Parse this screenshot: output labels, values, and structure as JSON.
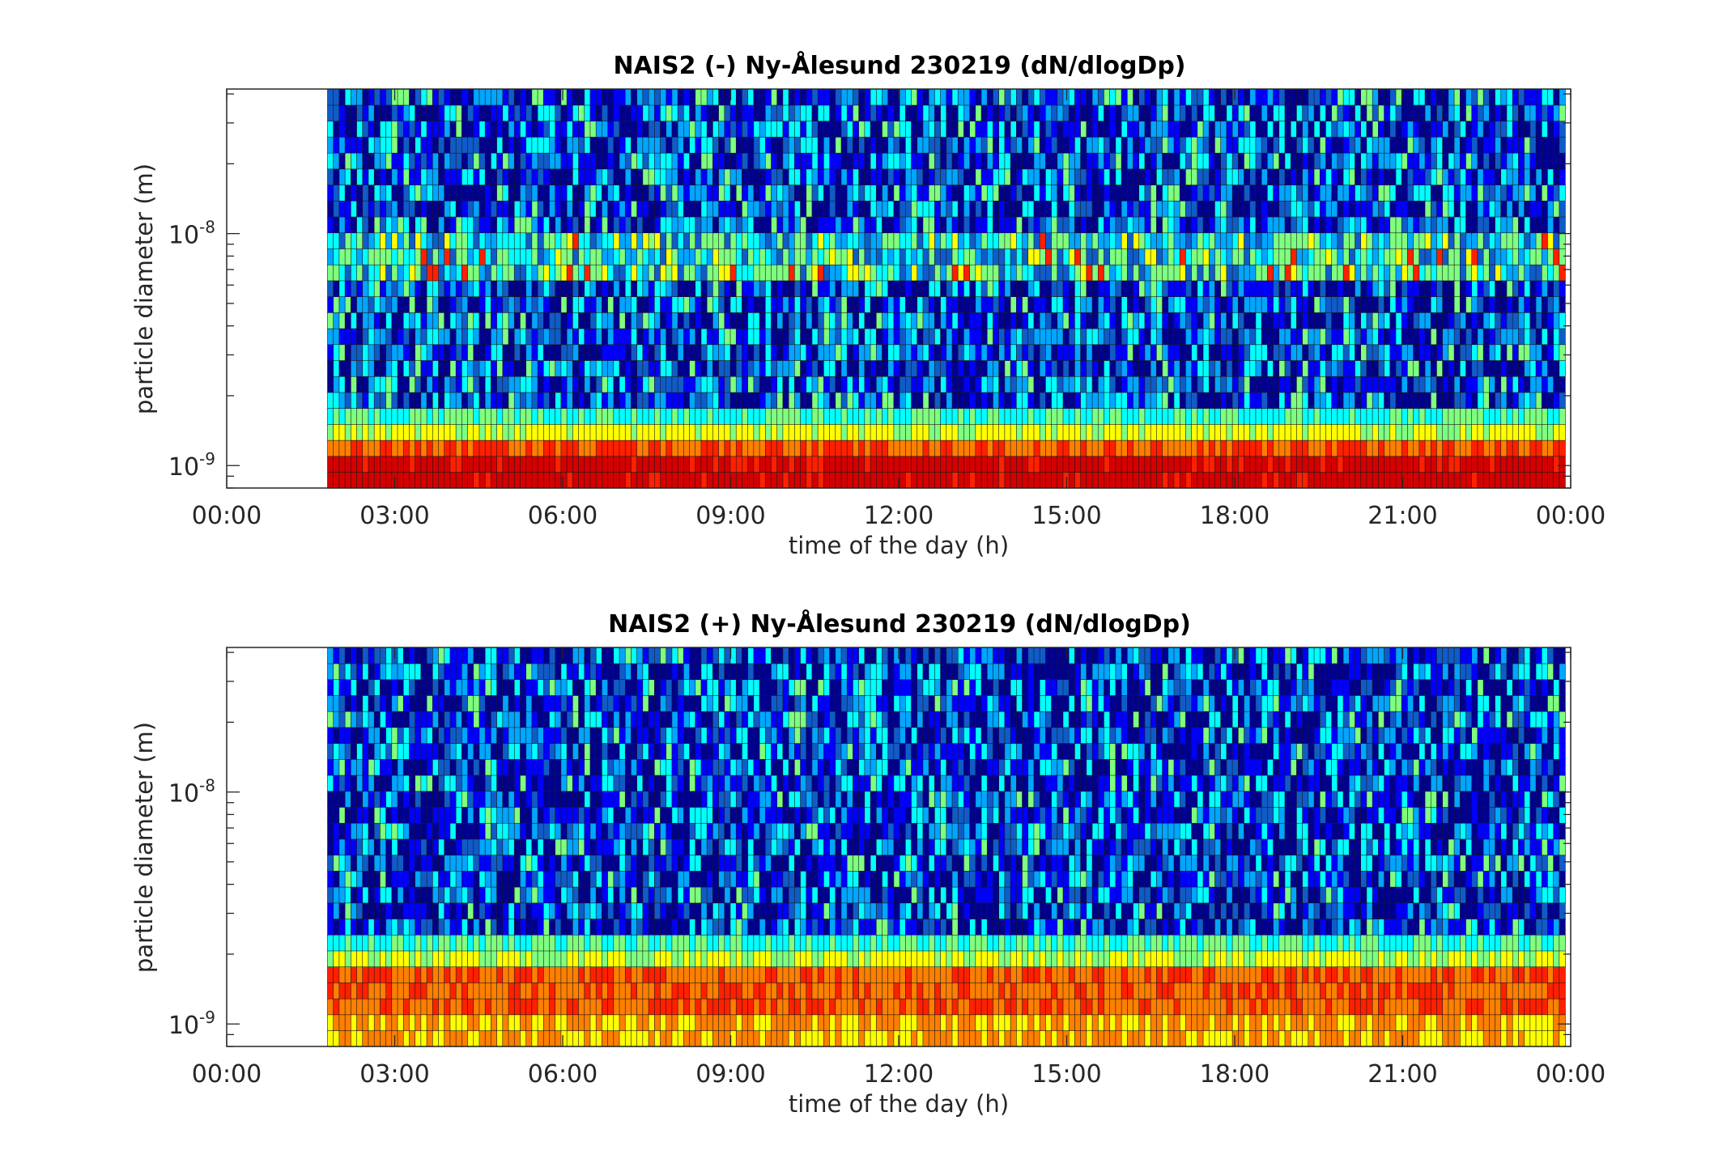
{
  "chart_data": [
    {
      "type": "heatmap",
      "title": "NAIS2 (-) Ny-Ålesund 230219 (dN/dlogDp)",
      "xlabel": "time of the day (h)",
      "ylabel": "particle diameter (m)",
      "x_ticks": [
        "00:00",
        "03:00",
        "06:00",
        "09:00",
        "12:00",
        "15:00",
        "18:00",
        "21:00",
        "00:00"
      ],
      "y_scale": "log",
      "y_ticks": [
        {
          "base": "10",
          "exp": "-9"
        },
        {
          "base": "10",
          "exp": "-8"
        }
      ],
      "xlim_hours": [
        0,
        24
      ],
      "ylim_m": [
        8e-10,
        4.2e-08
      ],
      "data_start_hour": 1.8,
      "data_end_hour": 23.9,
      "size_bins": 25,
      "time_bins": 212,
      "colors": [
        "#00008f",
        "#0000ff",
        "#0f5cc8",
        "#00a6ff",
        "#00ffff",
        "#7fff7f",
        "#ffff00",
        "#ff7f00",
        "#ff2000",
        "#d40000"
      ],
      "profile": "negative"
    },
    {
      "type": "heatmap",
      "title": "NAIS2 (+) Ny-Ålesund 230219 (dN/dlogDp)",
      "xlabel": "time of the day (h)",
      "ylabel": "particle diameter (m)",
      "x_ticks": [
        "00:00",
        "03:00",
        "06:00",
        "09:00",
        "12:00",
        "15:00",
        "18:00",
        "21:00",
        "00:00"
      ],
      "y_scale": "log",
      "y_ticks": [
        {
          "base": "10",
          "exp": "-9"
        },
        {
          "base": "10",
          "exp": "-8"
        }
      ],
      "xlim_hours": [
        0,
        24
      ],
      "ylim_m": [
        8e-10,
        4.2e-08
      ],
      "data_start_hour": 1.8,
      "data_end_hour": 23.9,
      "size_bins": 25,
      "time_bins": 212,
      "colors": [
        "#00008f",
        "#0000ff",
        "#0f5cc8",
        "#00a6ff",
        "#00ffff",
        "#7fff7f",
        "#ffff00",
        "#ff7f00",
        "#ff2000",
        "#d40000"
      ],
      "profile": "positive"
    }
  ]
}
